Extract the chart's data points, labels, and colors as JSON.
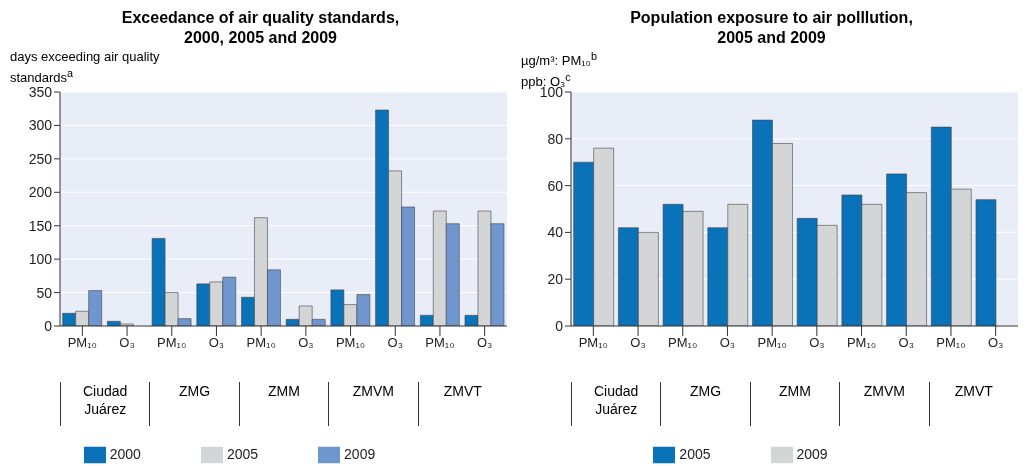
{
  "chart_data": [
    {
      "type": "bar",
      "title": "Exceedance of air quality standards,\n2000, 2005 and 2009",
      "ylabel": "days exceeding air quality\nstandards$^{a}$",
      "categories": [
        "PM₁₀",
        "O₃",
        "PM₁₀",
        "O₃",
        "PM₁₀",
        "O₃",
        "PM₁₀",
        "O₃",
        "PM₁₀",
        "O₃"
      ],
      "annotations": [
        "Ciudad Juárez",
        "ZMG",
        "ZMM",
        "ZMVM",
        "ZMVT"
      ],
      "series": [
        {
          "name": "2000",
          "color": "#0a72b8",
          "values": [
            19,
            7,
            131,
            63,
            43,
            10,
            54,
            323,
            16,
            16
          ]
        },
        {
          "name": "2005",
          "color": "#d4d5d7",
          "values": [
            22,
            3,
            50,
            66,
            162,
            30,
            32,
            232,
            172,
            172
          ]
        },
        {
          "name": "2009",
          "color": "#6f96cd",
          "values": [
            53,
            null,
            11,
            73,
            84,
            10,
            47,
            178,
            153,
            153
          ]
        }
      ],
      "ylim": [
        0,
        350
      ],
      "yticks": [
        0,
        50,
        100,
        150,
        200,
        250,
        300,
        350
      ],
      "grid": "y",
      "legend": "bottom"
    },
    {
      "type": "bar",
      "title": "Population exposure to air polllution,\n2005 and 2009",
      "ylabel": "µg/m³: PM₁₀$^{b}$\nppb: O₃$^{c}$",
      "categories": [
        "PM₁₀",
        "O₃",
        "PM₁₀",
        "O₃",
        "PM₁₀",
        "O₃",
        "PM₁₀",
        "O₃",
        "PM₁₀",
        "O₃"
      ],
      "annotations": [
        "Ciudad Juárez",
        "ZMG",
        "ZMM",
        "ZMVM",
        "ZMVT"
      ],
      "series": [
        {
          "name": "2005",
          "color": "#0a72b8",
          "values": [
            70,
            42,
            52,
            42,
            88,
            46,
            56,
            65,
            85,
            54
          ]
        },
        {
          "name": "2009",
          "color": "#d4d5d7",
          "values": [
            76,
            40,
            49,
            52,
            78,
            43,
            52,
            57,
            58.5,
            null
          ]
        }
      ],
      "ylim": [
        0,
        100
      ],
      "yticks": [
        0,
        20,
        40,
        60,
        80,
        100
      ],
      "grid": "y",
      "legend": "bottom"
    }
  ]
}
